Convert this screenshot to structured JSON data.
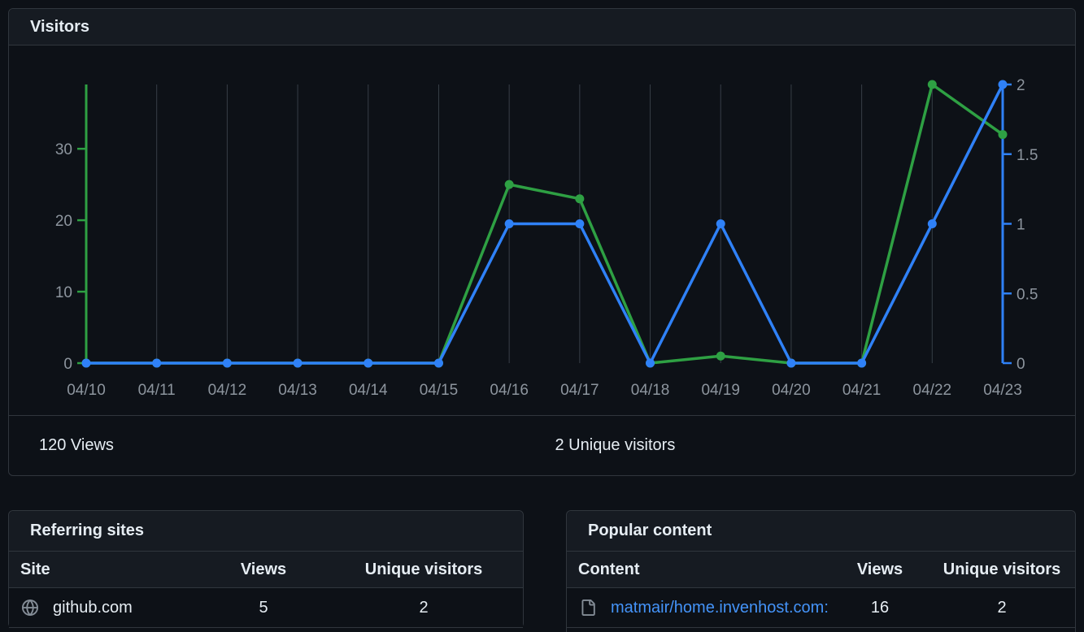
{
  "colors": {
    "views_green": "#2ea043",
    "unique_blue": "#2f81f7",
    "link_blue": "#4493f8",
    "muted_text": "#8d959e",
    "grid_line": "#373e47",
    "card_header_bg": "#161b22",
    "card_bg": "#0d1117",
    "border": "#30363d",
    "text_primary": "#e6edf3"
  },
  "visitors_card": {
    "title": "Visitors",
    "footer": {
      "views_summary": "120 Views",
      "unique_summary": "2 Unique visitors"
    }
  },
  "chart_data": {
    "type": "line",
    "title": "Visitors",
    "x": [
      "04/10",
      "04/11",
      "04/12",
      "04/13",
      "04/14",
      "04/15",
      "04/16",
      "04/17",
      "04/18",
      "04/19",
      "04/20",
      "04/21",
      "04/22",
      "04/23"
    ],
    "series": [
      {
        "name": "Views",
        "axis": "left",
        "color": "#2ea043",
        "values": [
          0,
          0,
          0,
          0,
          0,
          0,
          25,
          23,
          0,
          1,
          0,
          0,
          39,
          32
        ]
      },
      {
        "name": "Unique visitors",
        "axis": "right",
        "color": "#2f81f7",
        "values": [
          0,
          0,
          0,
          0,
          0,
          0,
          1,
          1,
          0,
          1,
          0,
          0,
          1,
          2
        ]
      }
    ],
    "left_axis": {
      "ticks": [
        0,
        10,
        20,
        30
      ],
      "max": 39,
      "color": "#2ea043"
    },
    "right_axis": {
      "ticks": [
        0,
        0.5,
        1,
        1.5,
        2
      ],
      "max": 2,
      "color": "#2f81f7"
    },
    "grid": "vertical",
    "grid_color": "#373e47",
    "tick_label_color": "#8d959e",
    "legend": "none"
  },
  "referring_sites": {
    "title": "Referring sites",
    "columns": [
      "Site",
      "Views",
      "Unique visitors"
    ],
    "rows": [
      {
        "icon": "globe-icon",
        "site": "github.com",
        "views": "5",
        "unique_visitors": "2"
      }
    ]
  },
  "popular_content": {
    "title": "Popular content",
    "columns": [
      "Content",
      "Views",
      "Unique visitors"
    ],
    "rows": [
      {
        "icon": "file-icon",
        "content": "matmair/home.invenhost.com: A …",
        "views": "16",
        "unique_visitors": "2"
      }
    ]
  }
}
